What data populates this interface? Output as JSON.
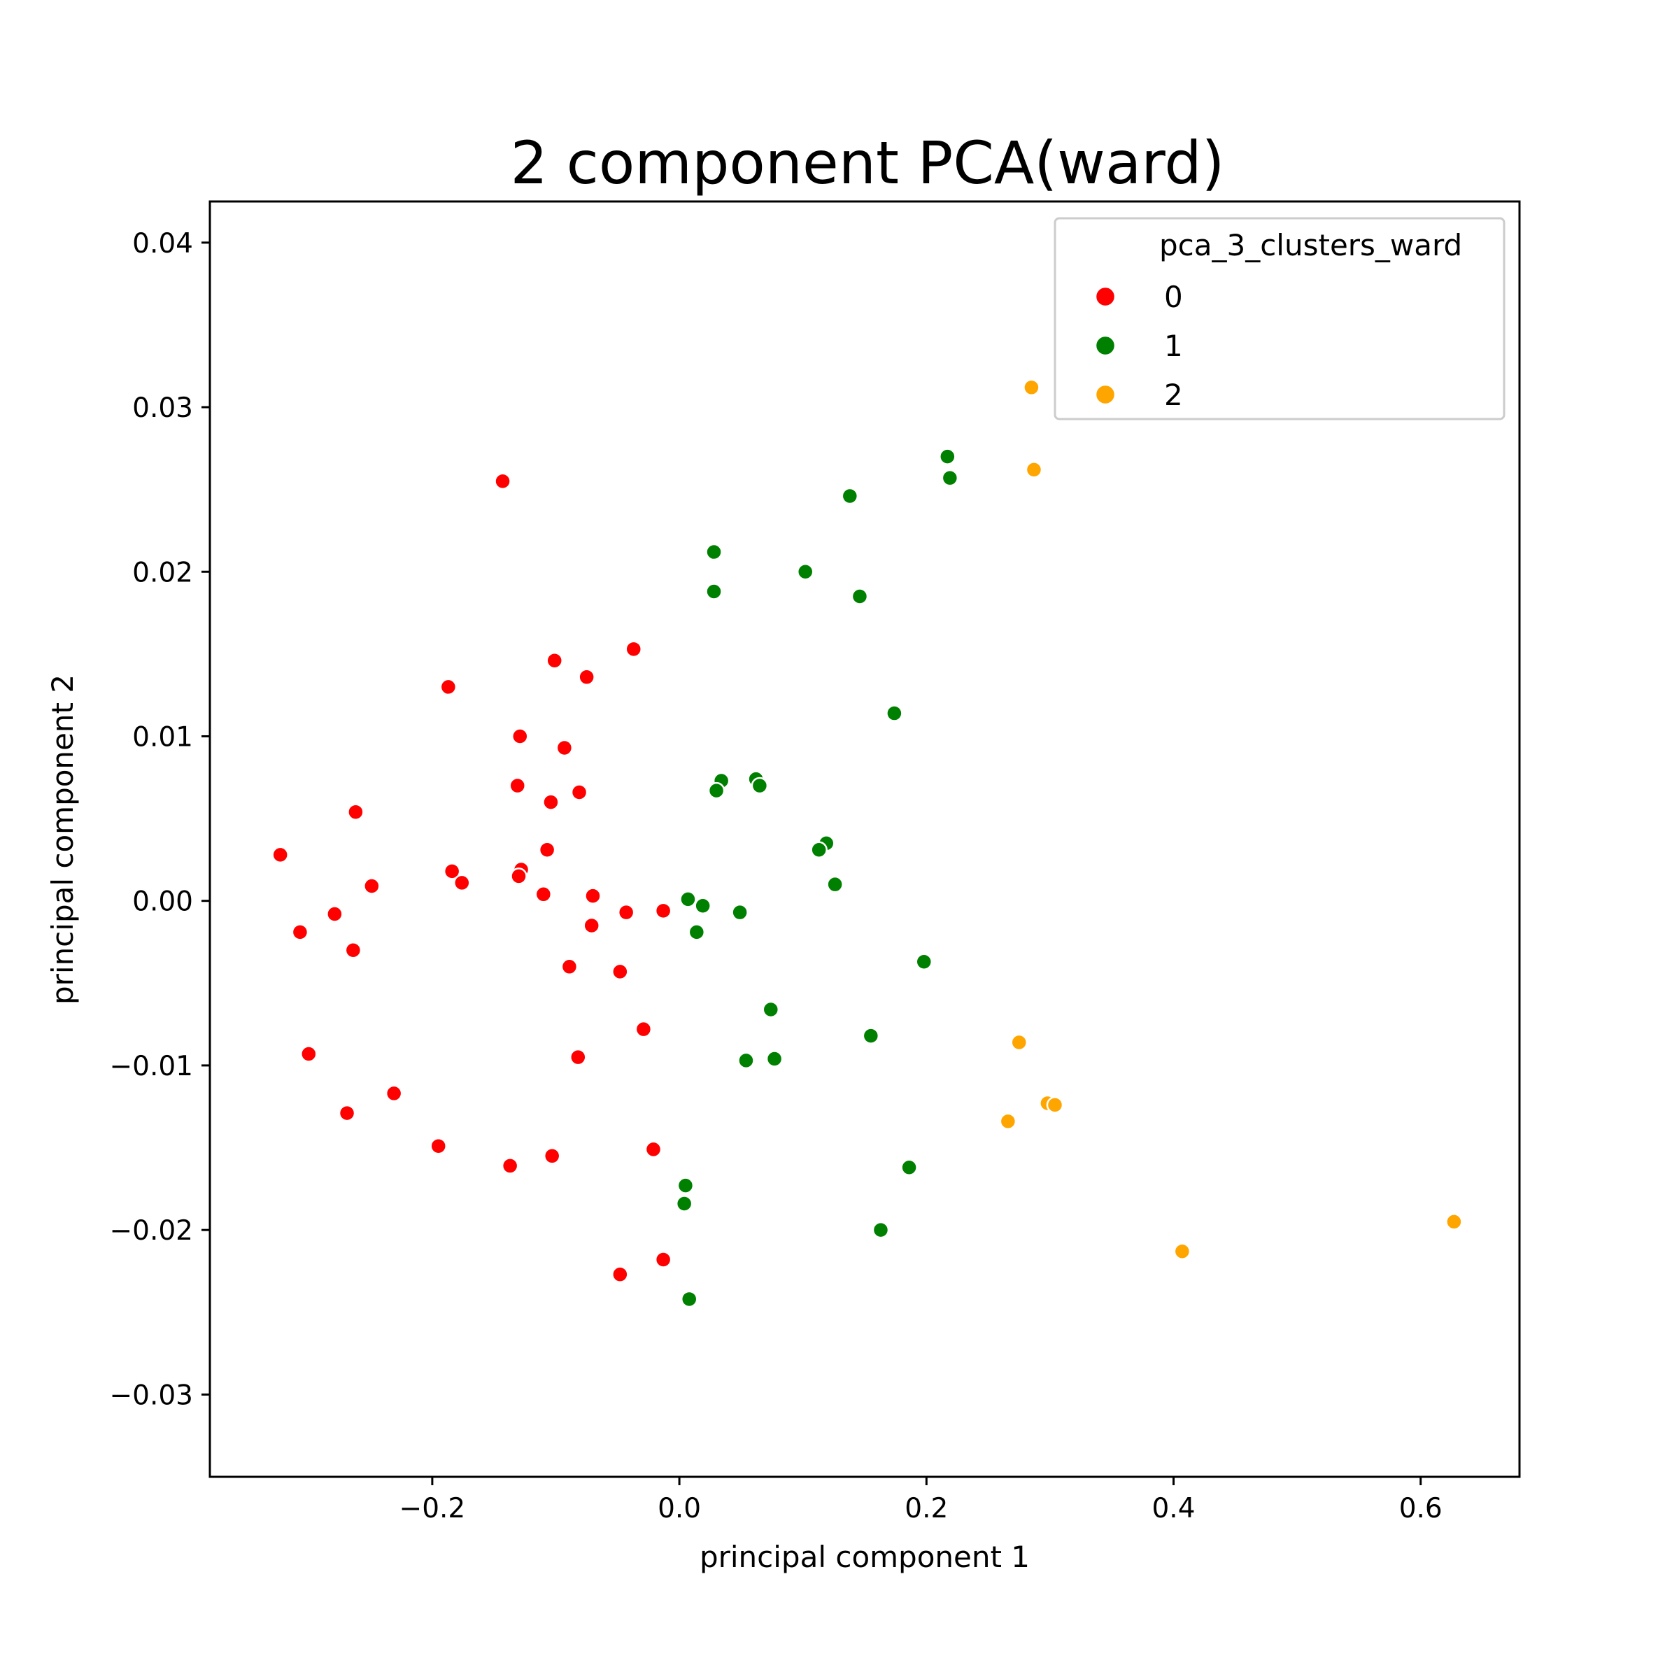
{
  "chart_data": {
    "type": "scatter",
    "title": "2 component PCA(ward)",
    "xlabel": "principal component 1",
    "ylabel": "principal component 2",
    "xlim": [
      -0.38,
      0.68
    ],
    "ylim": [
      -0.035,
      0.0425
    ],
    "xticks": [
      -0.2,
      0.0,
      0.2,
      0.4,
      0.6
    ],
    "xtick_labels": [
      "−0.2",
      "0.0",
      "0.2",
      "0.4",
      "0.6"
    ],
    "yticks": [
      -0.03,
      -0.02,
      -0.01,
      0.0,
      0.01,
      0.02,
      0.03,
      0.04
    ],
    "ytick_labels": [
      "−0.03",
      "−0.02",
      "−0.01",
      "0.00",
      "0.01",
      "0.02",
      "0.03",
      "0.04"
    ],
    "grid": false,
    "legend": {
      "title": "pca_3_clusters_ward",
      "placement": "top-right",
      "entries": [
        "0",
        "1",
        "2"
      ]
    },
    "series": [
      {
        "name": "0",
        "color": "#ff0000",
        "points": [
          [
            -0.143,
            0.0255
          ],
          [
            -0.037,
            0.0153
          ],
          [
            -0.101,
            0.0146
          ],
          [
            -0.075,
            0.0136
          ],
          [
            -0.187,
            0.013
          ],
          [
            -0.129,
            0.01
          ],
          [
            -0.093,
            0.0093
          ],
          [
            -0.131,
            0.007
          ],
          [
            -0.081,
            0.0066
          ],
          [
            -0.104,
            0.006
          ],
          [
            -0.262,
            0.0054
          ],
          [
            -0.323,
            0.0028
          ],
          [
            -0.107,
            0.0031
          ],
          [
            -0.184,
            0.0018
          ],
          [
            -0.128,
            0.0019
          ],
          [
            -0.13,
            0.0015
          ],
          [
            -0.176,
            0.0011
          ],
          [
            -0.249,
            0.0009
          ],
          [
            -0.11,
            0.0004
          ],
          [
            -0.07,
            0.0003
          ],
          [
            -0.043,
            -0.0007
          ],
          [
            -0.013,
            -0.0006
          ],
          [
            -0.279,
            -0.0008
          ],
          [
            -0.071,
            -0.0015
          ],
          [
            -0.307,
            -0.0019
          ],
          [
            -0.264,
            -0.003
          ],
          [
            -0.089,
            -0.004
          ],
          [
            -0.048,
            -0.0043
          ],
          [
            -0.029,
            -0.0078
          ],
          [
            -0.3,
            -0.0093
          ],
          [
            -0.082,
            -0.0095
          ],
          [
            -0.231,
            -0.0117
          ],
          [
            -0.269,
            -0.0129
          ],
          [
            -0.195,
            -0.0149
          ],
          [
            -0.137,
            -0.0161
          ],
          [
            -0.103,
            -0.0155
          ],
          [
            -0.021,
            -0.0151
          ],
          [
            -0.013,
            -0.0218
          ],
          [
            -0.048,
            -0.0227
          ]
        ]
      },
      {
        "name": "1",
        "color": "#008000",
        "points": [
          [
            0.217,
            0.027
          ],
          [
            0.219,
            0.0257
          ],
          [
            0.138,
            0.0246
          ],
          [
            0.028,
            0.0212
          ],
          [
            0.102,
            0.02
          ],
          [
            0.028,
            0.0188
          ],
          [
            0.146,
            0.0185
          ],
          [
            0.174,
            0.0114
          ],
          [
            0.034,
            0.0073
          ],
          [
            0.062,
            0.0074
          ],
          [
            0.03,
            0.0067
          ],
          [
            0.065,
            0.007
          ],
          [
            0.119,
            0.0035
          ],
          [
            0.113,
            0.0031
          ],
          [
            0.126,
            0.001
          ],
          [
            0.007,
            0.0001
          ],
          [
            0.019,
            -0.0003
          ],
          [
            0.049,
            -0.0007
          ],
          [
            0.014,
            -0.0019
          ],
          [
            0.198,
            -0.0037
          ],
          [
            0.074,
            -0.0066
          ],
          [
            0.155,
            -0.0082
          ],
          [
            0.054,
            -0.0097
          ],
          [
            0.077,
            -0.0096
          ],
          [
            0.186,
            -0.0162
          ],
          [
            0.005,
            -0.0173
          ],
          [
            0.004,
            -0.0184
          ],
          [
            0.163,
            -0.02
          ],
          [
            0.008,
            -0.0242
          ]
        ]
      },
      {
        "name": "2",
        "color": "#ffa500",
        "points": [
          [
            0.285,
            0.0312
          ],
          [
            0.287,
            0.0262
          ],
          [
            0.275,
            -0.0086
          ],
          [
            0.298,
            -0.0123
          ],
          [
            0.304,
            -0.0124
          ],
          [
            0.266,
            -0.0134
          ],
          [
            0.407,
            -0.0213
          ],
          [
            0.627,
            -0.0195
          ]
        ]
      }
    ]
  }
}
